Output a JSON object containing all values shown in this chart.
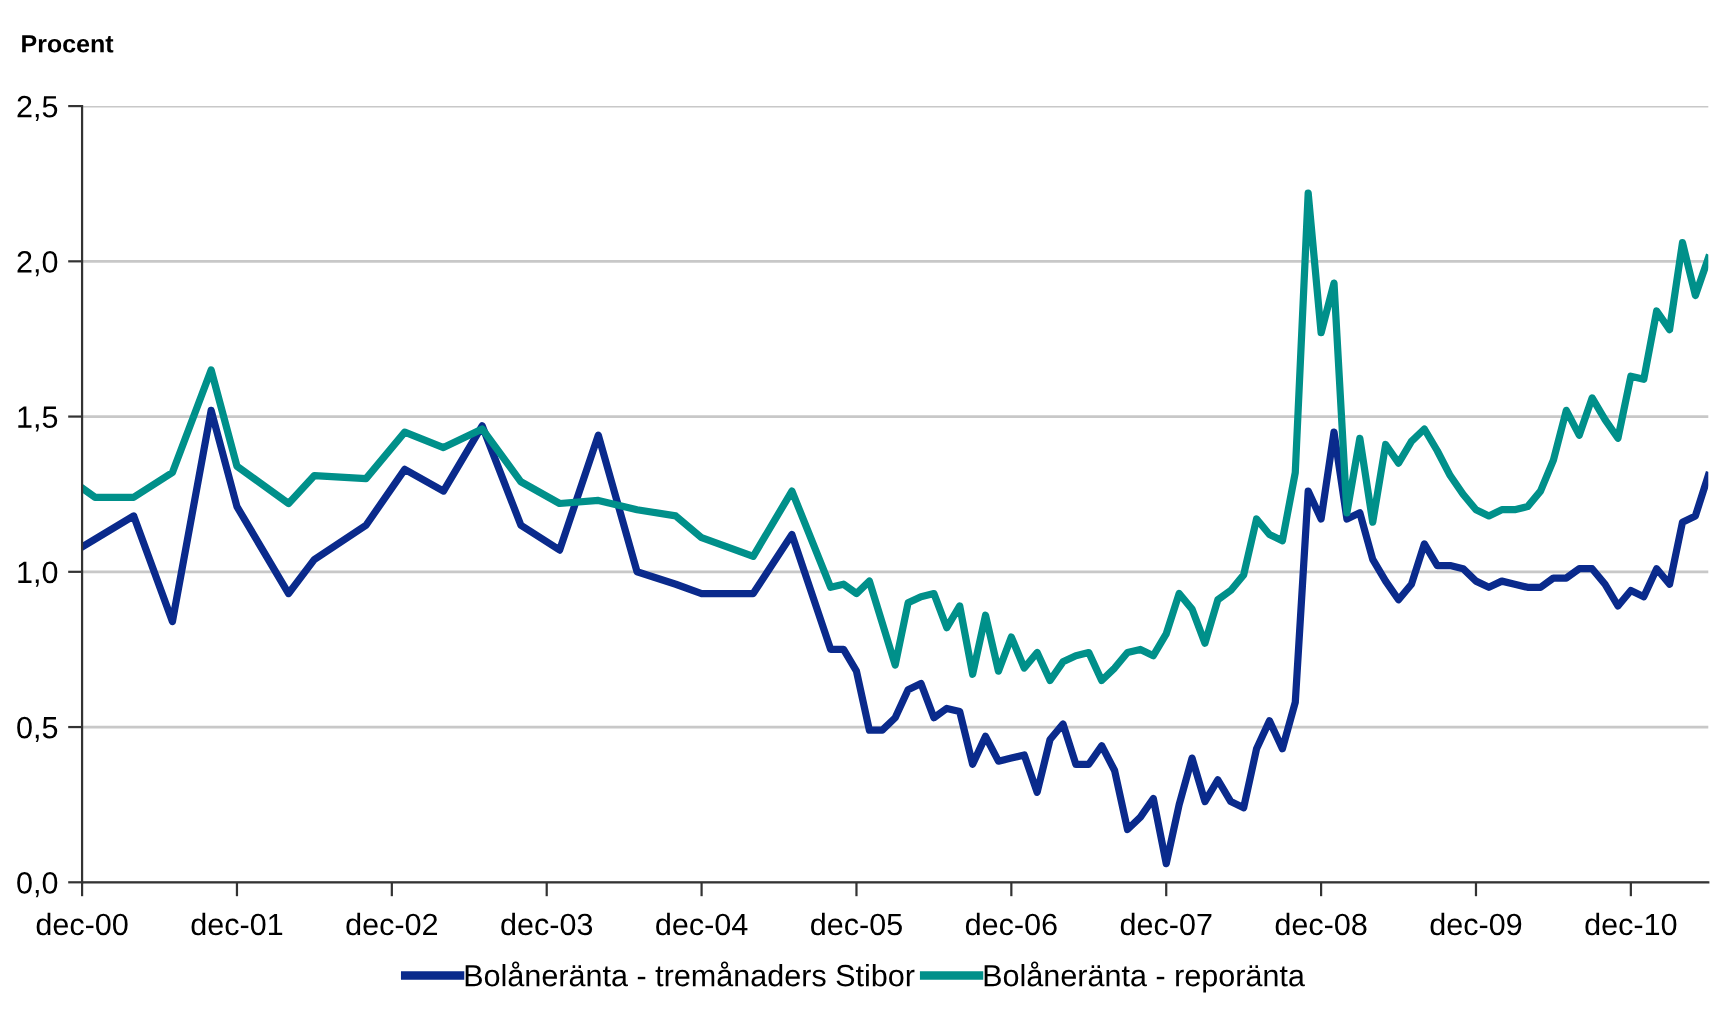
{
  "chart_data": {
    "type": "line",
    "ylabel": "Procent",
    "xlim": [
      "2000-12",
      "2011-06"
    ],
    "xticks": [
      {
        "value": "2000-12",
        "label": "dec-00"
      },
      {
        "value": "2001-12",
        "label": "dec-01"
      },
      {
        "value": "2002-12",
        "label": "dec-02"
      },
      {
        "value": "2003-12",
        "label": "dec-03"
      },
      {
        "value": "2004-12",
        "label": "dec-04"
      },
      {
        "value": "2005-12",
        "label": "dec-05"
      },
      {
        "value": "2006-12",
        "label": "dec-06"
      },
      {
        "value": "2007-12",
        "label": "dec-07"
      },
      {
        "value": "2008-12",
        "label": "dec-08"
      },
      {
        "value": "2009-12",
        "label": "dec-09"
      },
      {
        "value": "2010-12",
        "label": "dec-10"
      }
    ],
    "ylim": [
      0,
      2.5
    ],
    "yticks": [
      {
        "value": 0,
        "label": "0,0"
      },
      {
        "value": 0.5,
        "label": "0,5"
      },
      {
        "value": 1.0,
        "label": "1,0"
      },
      {
        "value": 1.5,
        "label": "1,5"
      },
      {
        "value": 2.0,
        "label": "2,0"
      },
      {
        "value": 2.5,
        "label": "2,5"
      }
    ],
    "grid": "y",
    "legend": "bottom",
    "marker": "none",
    "line_style": "solid",
    "series": [
      {
        "name": "Bolåneränta - tremånaders Stibor",
        "color": "#0a2a8c",
        "x": [
          "2000-12",
          "2001-04",
          "2001-07",
          "2001-10",
          "2001-12",
          "2002-04",
          "2002-06",
          "2002-10",
          "2003-01",
          "2003-04",
          "2003-07",
          "2003-10",
          "2004-01",
          "2004-04",
          "2004-07",
          "2004-10",
          "2004-12",
          "2005-04",
          "2005-07",
          "2005-10",
          "2005-11",
          "2005-12",
          "2006-01",
          "2006-02",
          "2006-03",
          "2006-04",
          "2006-05",
          "2006-06",
          "2006-07",
          "2006-08",
          "2006-09",
          "2006-10",
          "2006-11",
          "2006-12",
          "2007-01",
          "2007-02",
          "2007-03",
          "2007-04",
          "2007-05",
          "2007-06",
          "2007-07",
          "2007-08",
          "2007-09",
          "2007-10",
          "2007-11",
          "2007-12",
          "2008-01",
          "2008-02",
          "2008-03",
          "2008-04",
          "2008-05",
          "2008-06",
          "2008-07",
          "2008-08",
          "2008-09",
          "2008-10",
          "2008-11",
          "2008-12",
          "2009-01",
          "2009-02",
          "2009-03",
          "2009-04",
          "2009-05",
          "2009-06",
          "2009-07",
          "2009-08",
          "2009-09",
          "2009-10",
          "2009-11",
          "2009-12",
          "2010-01",
          "2010-02",
          "2010-03",
          "2010-04",
          "2010-05",
          "2010-06",
          "2010-07",
          "2010-08",
          "2010-09",
          "2010-10",
          "2010-11",
          "2010-12",
          "2011-01",
          "2011-02",
          "2011-03",
          "2011-04",
          "2011-05",
          "2011-06"
        ],
        "values": [
          1.08,
          1.18,
          0.84,
          1.52,
          1.21,
          0.93,
          1.04,
          1.15,
          1.33,
          1.26,
          1.47,
          1.15,
          1.07,
          1.44,
          1.0,
          0.96,
          0.93,
          0.93,
          1.12,
          0.75,
          0.75,
          0.68,
          0.49,
          0.49,
          0.53,
          0.62,
          0.64,
          0.53,
          0.56,
          0.55,
          0.38,
          0.47,
          0.39,
          0.4,
          0.41,
          0.29,
          0.46,
          0.51,
          0.38,
          0.38,
          0.44,
          0.36,
          0.17,
          0.21,
          0.27,
          0.06,
          0.25,
          0.4,
          0.26,
          0.33,
          0.26,
          0.24,
          0.43,
          0.52,
          0.43,
          0.58,
          1.26,
          1.17,
          1.45,
          1.17,
          1.19,
          1.04,
          0.97,
          0.91,
          0.96,
          1.09,
          1.02,
          1.02,
          1.01,
          0.97,
          0.95,
          0.97,
          0.96,
          0.95,
          0.95,
          0.98,
          0.98,
          1.01,
          1.01,
          0.96,
          0.89,
          0.94,
          0.92,
          1.01,
          0.96,
          1.16,
          1.18,
          1.31
        ]
      },
      {
        "name": "Bolåneränta - reporänta",
        "color": "#00908a",
        "x": [
          "2000-12",
          "2001-01",
          "2001-04",
          "2001-07",
          "2001-10",
          "2001-12",
          "2002-04",
          "2002-06",
          "2002-10",
          "2003-01",
          "2003-04",
          "2003-07",
          "2003-10",
          "2004-01",
          "2004-04",
          "2004-07",
          "2004-10",
          "2004-12",
          "2005-04",
          "2005-07",
          "2005-10",
          "2005-11",
          "2005-12",
          "2006-01",
          "2006-03",
          "2006-04",
          "2006-05",
          "2006-06",
          "2006-07",
          "2006-08",
          "2006-09",
          "2006-10",
          "2006-11",
          "2006-12",
          "2007-01",
          "2007-02",
          "2007-03",
          "2007-04",
          "2007-05",
          "2007-06",
          "2007-07",
          "2007-08",
          "2007-09",
          "2007-10",
          "2007-11",
          "2007-12",
          "2008-01",
          "2008-02",
          "2008-03",
          "2008-04",
          "2008-05",
          "2008-06",
          "2008-07",
          "2008-08",
          "2008-09",
          "2008-10",
          "2008-11",
          "2008-12",
          "2009-01",
          "2009-02",
          "2009-03",
          "2009-04",
          "2009-05",
          "2009-06",
          "2009-07",
          "2009-08",
          "2009-09",
          "2009-10",
          "2009-11",
          "2009-12",
          "2010-01",
          "2010-02",
          "2010-03",
          "2010-04",
          "2010-05",
          "2010-06",
          "2010-07",
          "2010-08",
          "2010-09",
          "2010-10",
          "2010-11",
          "2010-12",
          "2011-01",
          "2011-02",
          "2011-03",
          "2011-04",
          "2011-05",
          "2011-06"
        ],
        "values": [
          1.27,
          1.24,
          1.24,
          1.32,
          1.65,
          1.34,
          1.22,
          1.31,
          1.3,
          1.45,
          1.4,
          1.46,
          1.29,
          1.22,
          1.23,
          1.2,
          1.18,
          1.11,
          1.05,
          1.26,
          0.95,
          0.96,
          0.93,
          0.97,
          0.7,
          0.9,
          0.92,
          0.93,
          0.82,
          0.89,
          0.67,
          0.86,
          0.68,
          0.79,
          0.69,
          0.74,
          0.65,
          0.71,
          0.73,
          0.74,
          0.65,
          0.69,
          0.74,
          0.75,
          0.73,
          0.8,
          0.93,
          0.88,
          0.77,
          0.91,
          0.94,
          0.99,
          1.17,
          1.12,
          1.1,
          1.32,
          2.22,
          1.77,
          1.93,
          1.19,
          1.43,
          1.16,
          1.41,
          1.35,
          1.42,
          1.46,
          1.39,
          1.31,
          1.25,
          1.2,
          1.18,
          1.2,
          1.2,
          1.21,
          1.26,
          1.36,
          1.52,
          1.44,
          1.56,
          1.49,
          1.43,
          1.63,
          1.62,
          1.84,
          1.78,
          2.06,
          1.89,
          2.01
        ]
      }
    ]
  }
}
